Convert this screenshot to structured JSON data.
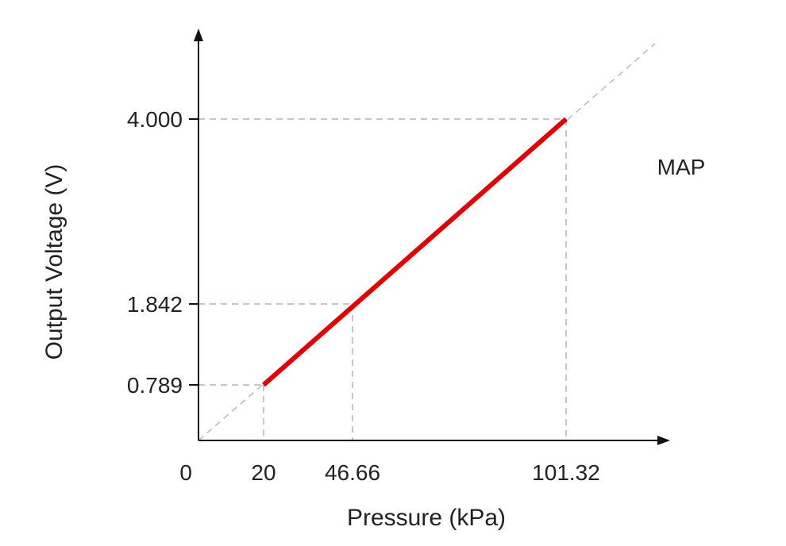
{
  "chart_data": {
    "type": "line",
    "title": "",
    "annotation": "MAP",
    "xlabel": "Pressure (kPa)",
    "ylabel": "Output Voltage (V)",
    "x_ticks": [
      "0",
      "20",
      "46.66",
      "101.32"
    ],
    "x_tick_values": [
      0,
      20,
      46.66,
      101.32
    ],
    "y_ticks": [
      "0.789",
      "1.842",
      "4.000"
    ],
    "y_tick_values": [
      0.789,
      1.842,
      4.0
    ],
    "series": [
      {
        "name": "MAP",
        "color": "#e00000",
        "x": [
          20,
          46.66,
          101.32
        ],
        "y": [
          0.789,
          1.842,
          4.0
        ]
      }
    ],
    "reference_line": {
      "style": "dashed",
      "color": "#b8b8c8"
    },
    "guide_color": "#c8a8b0",
    "axis_color": "#111111",
    "grid": false
  }
}
